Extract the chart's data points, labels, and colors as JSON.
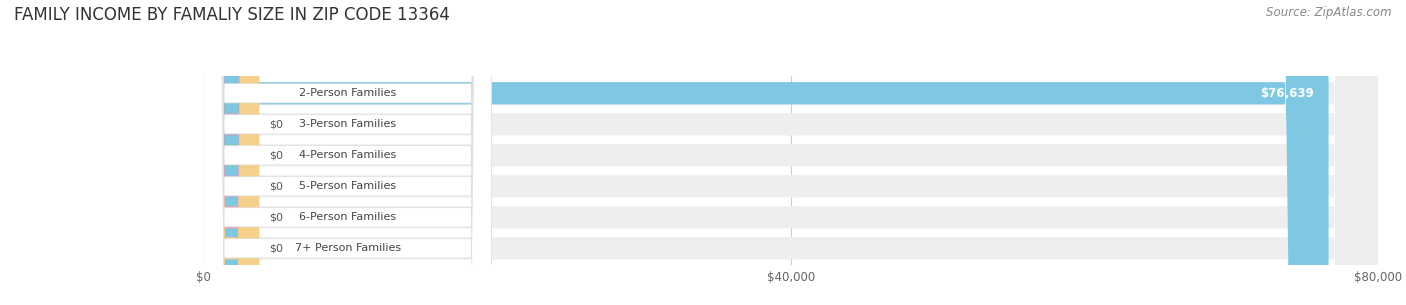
{
  "title": "FAMILY INCOME BY FAMALIY SIZE IN ZIP CODE 13364",
  "source": "Source: ZipAtlas.com",
  "categories": [
    "2-Person Families",
    "3-Person Families",
    "4-Person Families",
    "5-Person Families",
    "6-Person Families",
    "7+ Person Families"
  ],
  "values": [
    76639,
    0,
    0,
    0,
    0,
    0
  ],
  "bar_colors": [
    "#7ec8e3",
    "#c9a0c8",
    "#7ecbb8",
    "#a8a8e0",
    "#f0a0b0",
    "#f5d08a"
  ],
  "xlim": [
    0,
    80000
  ],
  "xticks": [
    0,
    40000,
    80000
  ],
  "xtick_labels": [
    "$0",
    "$40,000",
    "$80,000"
  ],
  "value_label": "$76,639",
  "background_color": "#ffffff",
  "bar_bg_color": "#eeeeee",
  "title_fontsize": 12,
  "source_fontsize": 8.5
}
